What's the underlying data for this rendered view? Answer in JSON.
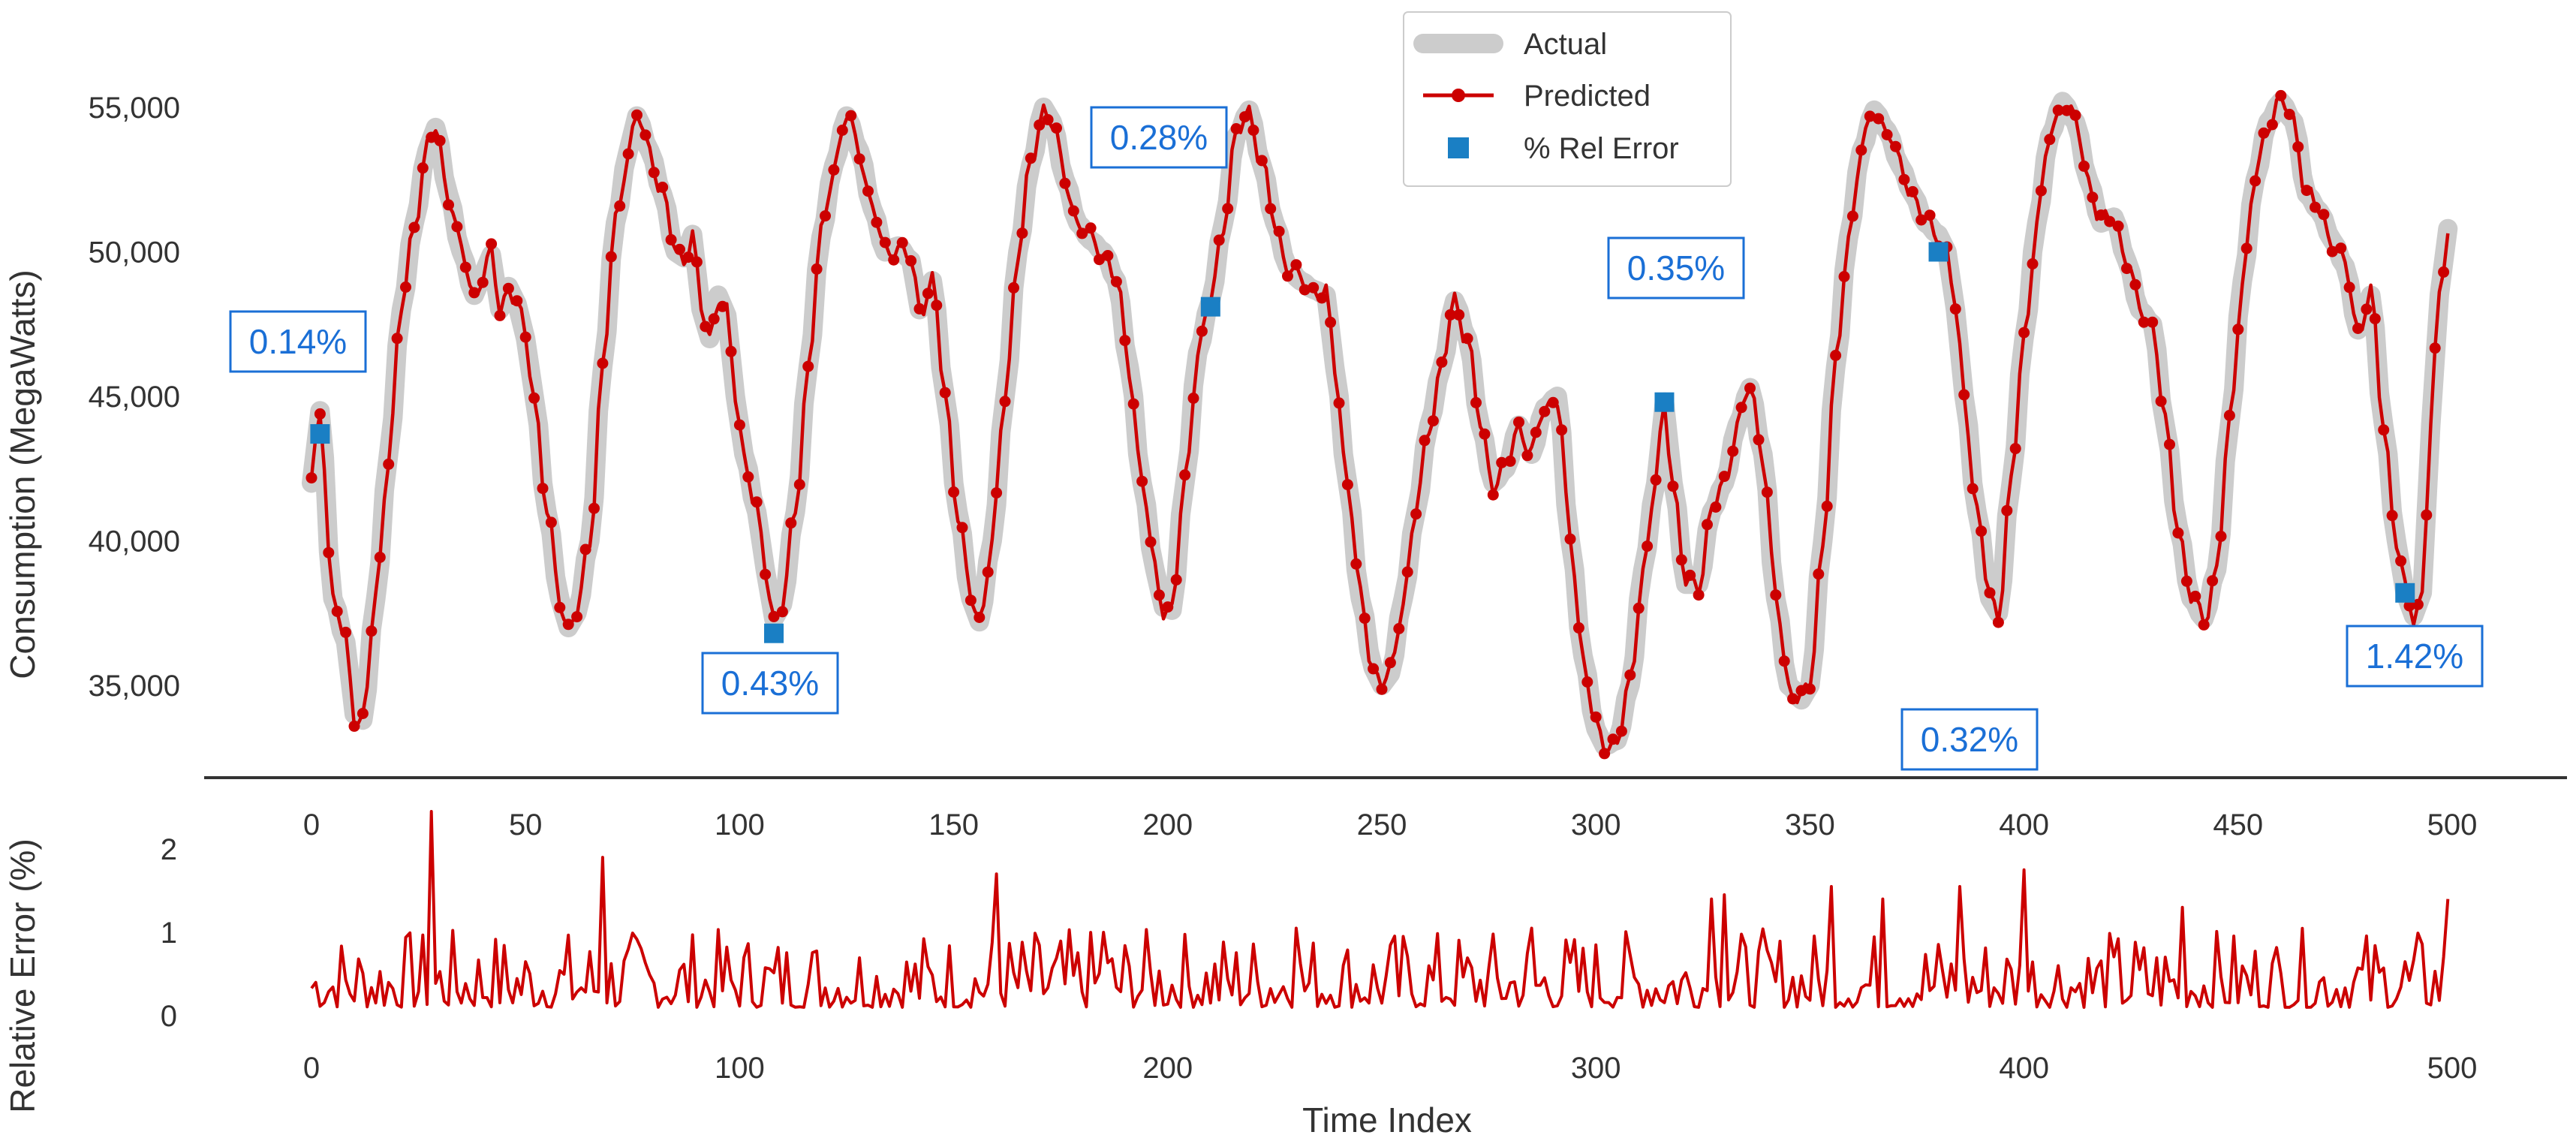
{
  "chart_data": [
    {
      "type": "line",
      "panel": "top",
      "ylabel": "Consumption (MegaWatts)",
      "xlim": [
        -15,
        530
      ],
      "ylim": [
        32000,
        56500
      ],
      "xticks": [
        0,
        50,
        100,
        150,
        200,
        250,
        300,
        350,
        400,
        450,
        500
      ],
      "yticks": [
        35000,
        40000,
        45000,
        50000,
        55000
      ],
      "ytick_labels": [
        "35,000",
        "40,000",
        "45,000",
        "50,000",
        "55,000"
      ],
      "grid": false,
      "legend": {
        "position": "top-center",
        "entries": [
          {
            "label": "Actual",
            "style": "thick-gray-line"
          },
          {
            "label": "Predicted",
            "style": "red-line-dots"
          },
          {
            "label": "% Rel Error",
            "style": "blue-square"
          }
        ]
      },
      "keyframes": [
        [
          0,
          42000
        ],
        [
          2,
          44500
        ],
        [
          5,
          38000
        ],
        [
          8,
          36500
        ],
        [
          10,
          34000
        ],
        [
          12,
          33800
        ],
        [
          15,
          38000
        ],
        [
          18,
          43000
        ],
        [
          21,
          48000
        ],
        [
          24,
          51000
        ],
        [
          27,
          53500
        ],
        [
          29,
          54300
        ],
        [
          32,
          52000
        ],
        [
          35,
          50000
        ],
        [
          38,
          48500
        ],
        [
          40,
          49200
        ],
        [
          42,
          49900
        ],
        [
          44,
          48000
        ],
        [
          46,
          48800
        ],
        [
          48,
          48200
        ],
        [
          50,
          47000
        ],
        [
          52,
          45000
        ],
        [
          55,
          41000
        ],
        [
          58,
          38000
        ],
        [
          60,
          37000
        ],
        [
          62,
          37500
        ],
        [
          65,
          40000
        ],
        [
          68,
          46000
        ],
        [
          71,
          51000
        ],
        [
          74,
          53500
        ],
        [
          76,
          54700
        ],
        [
          79,
          53500
        ],
        [
          82,
          52000
        ],
        [
          85,
          50000
        ],
        [
          87,
          49800
        ],
        [
          89,
          50600
        ],
        [
          91,
          48000
        ],
        [
          93,
          47000
        ],
        [
          95,
          48500
        ],
        [
          97,
          47800
        ],
        [
          99,
          45000
        ],
        [
          101,
          43000
        ],
        [
          104,
          41000
        ],
        [
          106,
          39000
        ],
        [
          108,
          37300
        ],
        [
          110,
          37800
        ],
        [
          113,
          41000
        ],
        [
          116,
          46000
        ],
        [
          119,
          50500
        ],
        [
          122,
          53000
        ],
        [
          125,
          54700
        ],
        [
          128,
          53500
        ],
        [
          131,
          51500
        ],
        [
          134,
          50000
        ],
        [
          137,
          50200
        ],
        [
          140,
          49700
        ],
        [
          142,
          48000
        ],
        [
          145,
          49000
        ],
        [
          148,
          45000
        ],
        [
          151,
          41000
        ],
        [
          154,
          38000
        ],
        [
          156,
          37200
        ],
        [
          159,
          40000
        ],
        [
          162,
          45000
        ],
        [
          165,
          50000
        ],
        [
          168,
          53000
        ],
        [
          171,
          55000
        ],
        [
          173,
          54500
        ],
        [
          176,
          52500
        ],
        [
          179,
          51000
        ],
        [
          182,
          50400
        ],
        [
          185,
          50000
        ],
        [
          188,
          49000
        ],
        [
          191,
          46000
        ],
        [
          194,
          42000
        ],
        [
          197,
          39000
        ],
        [
          199,
          37700
        ],
        [
          201,
          37600
        ],
        [
          204,
          42000
        ],
        [
          207,
          46500
        ],
        [
          210,
          48300
        ],
        [
          213,
          51000
        ],
        [
          216,
          54000
        ],
        [
          219,
          54900
        ],
        [
          222,
          53000
        ],
        [
          225,
          51000
        ],
        [
          228,
          49500
        ],
        [
          231,
          49000
        ],
        [
          234,
          48700
        ],
        [
          237,
          48500
        ],
        [
          239,
          46000
        ],
        [
          242,
          42000
        ],
        [
          245,
          38000
        ],
        [
          248,
          35600
        ],
        [
          250,
          35000
        ],
        [
          252,
          35400
        ],
        [
          255,
          38000
        ],
        [
          258,
          41000
        ],
        [
          261,
          44000
        ],
        [
          264,
          46000
        ],
        [
          267,
          48300
        ],
        [
          270,
          47000
        ],
        [
          273,
          44000
        ],
        [
          276,
          42000
        ],
        [
          279,
          42500
        ],
        [
          282,
          44000
        ],
        [
          285,
          43000
        ],
        [
          288,
          44600
        ],
        [
          291,
          45000
        ],
        [
          294,
          40000
        ],
        [
          297,
          36000
        ],
        [
          300,
          33500
        ],
        [
          302,
          32900
        ],
        [
          305,
          33100
        ],
        [
          308,
          35000
        ],
        [
          311,
          39000
        ],
        [
          314,
          42000
        ],
        [
          316,
          44800
        ],
        [
          318,
          42000
        ],
        [
          321,
          38500
        ],
        [
          324,
          38500
        ],
        [
          327,
          41000
        ],
        [
          330,
          42000
        ],
        [
          333,
          44000
        ],
        [
          336,
          45300
        ],
        [
          339,
          43000
        ],
        [
          342,
          38000
        ],
        [
          345,
          35000
        ],
        [
          348,
          34500
        ],
        [
          350,
          35000
        ],
        [
          353,
          40000
        ],
        [
          356,
          46000
        ],
        [
          359,
          50500
        ],
        [
          362,
          53500
        ],
        [
          365,
          54900
        ],
        [
          368,
          54200
        ],
        [
          371,
          53000
        ],
        [
          374,
          52000
        ],
        [
          377,
          51000
        ],
        [
          380,
          50600
        ],
        [
          382,
          50000
        ],
        [
          384,
          48000
        ],
        [
          386,
          45000
        ],
        [
          389,
          41000
        ],
        [
          392,
          38000
        ],
        [
          394,
          37500
        ],
        [
          397,
          42000
        ],
        [
          400,
          47000
        ],
        [
          403,
          51000
        ],
        [
          406,
          54000
        ],
        [
          409,
          55200
        ],
        [
          412,
          54500
        ],
        [
          415,
          52500
        ],
        [
          418,
          51000
        ],
        [
          421,
          51200
        ],
        [
          424,
          49700
        ],
        [
          427,
          48000
        ],
        [
          430,
          47500
        ],
        [
          433,
          44000
        ],
        [
          436,
          40500
        ],
        [
          439,
          38000
        ],
        [
          442,
          37300
        ],
        [
          445,
          39000
        ],
        [
          448,
          44000
        ],
        [
          451,
          49000
        ],
        [
          454,
          52500
        ],
        [
          457,
          54500
        ],
        [
          460,
          55200
        ],
        [
          463,
          54500
        ],
        [
          466,
          52000
        ],
        [
          469,
          51400
        ],
        [
          472,
          50400
        ],
        [
          475,
          49500
        ],
        [
          478,
          47300
        ],
        [
          481,
          48500
        ],
        [
          484,
          44000
        ],
        [
          487,
          40000
        ],
        [
          489,
          38200
        ],
        [
          491,
          37400
        ],
        [
          493,
          38200
        ],
        [
          495,
          44000
        ],
        [
          497,
          48500
        ],
        [
          499,
          50800
        ]
      ],
      "error_markers": [
        {
          "x": 2,
          "y": 43700,
          "label": "0.14%"
        },
        {
          "x": 108,
          "y": 36800,
          "label": "0.43%"
        },
        {
          "x": 210,
          "y": 48100,
          "label": "0.28%"
        },
        {
          "x": 316,
          "y": 44800,
          "label": "0.35%"
        },
        {
          "x": 380,
          "y": 50000,
          "label": "0.32%"
        },
        {
          "x": 489,
          "y": 38200,
          "label": "1.42%"
        }
      ]
    },
    {
      "type": "line",
      "panel": "bottom",
      "ylabel": "Relative Error (%)",
      "xlabel": "Time Index",
      "xlim": [
        -15,
        530
      ],
      "ylim": [
        -0.05,
        2.5
      ],
      "xticks": [
        0,
        100,
        200,
        300,
        400,
        500
      ],
      "yticks": [
        0,
        1,
        2
      ],
      "top_xticks": [
        0,
        50,
        100,
        150,
        200,
        250,
        300,
        350,
        400,
        450,
        500
      ],
      "grid": false,
      "spikes": [
        [
          28,
          2.45
        ],
        [
          68,
          1.9
        ],
        [
          160,
          1.7
        ],
        [
          185,
          1.0
        ],
        [
          230,
          1.05
        ],
        [
          285,
          1.05
        ],
        [
          327,
          1.4
        ],
        [
          330,
          1.45
        ],
        [
          355,
          1.55
        ],
        [
          367,
          1.4
        ],
        [
          385,
          1.55
        ],
        [
          400,
          1.75
        ],
        [
          437,
          1.3
        ],
        [
          499,
          1.4
        ]
      ]
    }
  ]
}
